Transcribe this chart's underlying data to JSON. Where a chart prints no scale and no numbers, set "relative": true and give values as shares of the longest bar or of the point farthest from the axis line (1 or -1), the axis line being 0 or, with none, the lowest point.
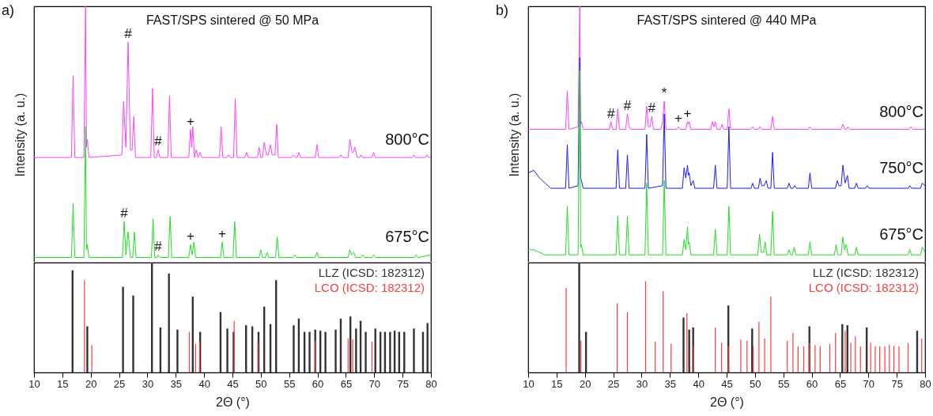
{
  "chart_data": [
    {
      "type": "line",
      "relative": true,
      "ylabel": "Intensity (a. u.)",
      "xlim": [
        10,
        80
      ],
      "xticks": [
        10,
        15,
        20,
        25,
        30,
        35,
        40,
        45,
        50,
        55,
        60,
        65,
        70,
        75,
        80
      ],
      "tick_labels": false,
      "annotations": [
        "a)",
        "FAST/SPS sintered @ 50 MPa",
        {
          "text": "#",
          "x": 26.6,
          "y": 0.86
        },
        {
          "text": "#",
          "x": 31.9,
          "y": 0.44
        },
        {
          "text": "+",
          "x": 37.6,
          "y": 0.52
        },
        {
          "text": "#",
          "x": 25.9,
          "y": 0.16
        },
        {
          "text": "#",
          "x": 31.9,
          "y": 0.03
        },
        {
          "text": "+",
          "x": 37.6,
          "y": 0.07
        },
        {
          "text": "+",
          "x": 43.2,
          "y": 0.08
        }
      ],
      "series": [
        {
          "name": "800°C",
          "color": "#ff40ff",
          "x": [
            10,
            16.6,
            16.9,
            17.2,
            18.8,
            19.1,
            19.25,
            19.4,
            19.7,
            25.5,
            25.8,
            26.2,
            26.6,
            27.0,
            27.3,
            27.6,
            27.9,
            30.6,
            30.9,
            31.2,
            31.6,
            31.9,
            32.2,
            33.6,
            33.9,
            34.2,
            37.3,
            37.6,
            37.8,
            38.0,
            38.3,
            38.6,
            38.9,
            39.3,
            39.6,
            42.7,
            43.0,
            43.3,
            44.0,
            44.3,
            44.6,
            45.2,
            45.5,
            45.8,
            47.2,
            47.5,
            47.8,
            49.4,
            49.7,
            50.0,
            50.3,
            50.6,
            51.0,
            51.3,
            51.7,
            52.0,
            52.5,
            52.8,
            53.1,
            55.4,
            55.7,
            56.1,
            56.4,
            56.7,
            57.0,
            59.6,
            59.9,
            60.2,
            63.8,
            64.1,
            64.4,
            65.4,
            65.7,
            66.1,
            66.3,
            66.6,
            67.0,
            67.4,
            67.7,
            68.0,
            69.6,
            69.9,
            70.2,
            76.7,
            77.0,
            77.3,
            79.0,
            79.3,
            79.6,
            80
          ],
          "values": [
            0.41,
            0.41,
            0.73,
            0.41,
            0.41,
            1,
            0.45,
            0.48,
            0.41,
            0.42,
            0.63,
            0.45,
            0.86,
            0.44,
            0.44,
            0.57,
            0.41,
            0.41,
            0.68,
            0.41,
            0.41,
            0.44,
            0.41,
            0.41,
            0.65,
            0.41,
            0.41,
            0.52,
            0.45,
            0.53,
            0.41,
            0.44,
            0.41,
            0.43,
            0.41,
            0.41,
            0.53,
            0.41,
            0.41,
            0.42,
            0.41,
            0.41,
            0.64,
            0.41,
            0.41,
            0.43,
            0.41,
            0.41,
            0.45,
            0.41,
            0.41,
            0.47,
            0.42,
            0.42,
            0.46,
            0.42,
            0.42,
            0.54,
            0.41,
            0.41,
            0.42,
            0.41,
            0.41,
            0.43,
            0.41,
            0.41,
            0.46,
            0.41,
            0.41,
            0.42,
            0.41,
            0.41,
            0.48,
            0.43,
            0.43,
            0.45,
            0.41,
            0.41,
            0.42,
            0.41,
            0.41,
            0.43,
            0.41,
            0.41,
            0.42,
            0.41,
            0.41,
            0.42,
            0.41,
            0.41
          ]
        },
        {
          "name": "675°C",
          "color": "#22dd22",
          "x": [
            10,
            16.6,
            16.9,
            17.2,
            18.8,
            19.1,
            19.25,
            19.4,
            19.7,
            25.6,
            25.9,
            26.2,
            26.6,
            27.0,
            27.4,
            27.7,
            28.0,
            30.7,
            31.0,
            31.3,
            31.7,
            31.9,
            32.2,
            33.7,
            34.0,
            34.3,
            37.3,
            37.6,
            37.9,
            38.2,
            38.5,
            42.9,
            43.2,
            43.5,
            45.1,
            45.4,
            45.7,
            49.7,
            50.0,
            50.3,
            50.8,
            51.1,
            51.4,
            52.6,
            52.9,
            53.2,
            55.7,
            56.0,
            56.3,
            59.6,
            59.9,
            60.2,
            65.4,
            65.7,
            66.0,
            66.4,
            66.7,
            67.7,
            68.0,
            68.3,
            69.6,
            69.9,
            70.2,
            77.1,
            77.4,
            77.7,
            80
          ],
          "values": [
            0.02,
            0.02,
            0.23,
            0.02,
            0.02,
            0.53,
            0.05,
            0.07,
            0.02,
            0.02,
            0.16,
            0.03,
            0.12,
            0.02,
            0.02,
            0.12,
            0.02,
            0.02,
            0.17,
            0.02,
            0.02,
            0.03,
            0.02,
            0.02,
            0.18,
            0.02,
            0.02,
            0.07,
            0.03,
            0.08,
            0.02,
            0.02,
            0.08,
            0.02,
            0.02,
            0.16,
            0.02,
            0.02,
            0.05,
            0.02,
            0.02,
            0.04,
            0.02,
            0.02,
            0.1,
            0.02,
            0.02,
            0.03,
            0.02,
            0.02,
            0.04,
            0.02,
            0.02,
            0.05,
            0.03,
            0.04,
            0.02,
            0.02,
            0.03,
            0.02,
            0.02,
            0.03,
            0.02,
            0.02,
            0.03,
            0.02,
            0.03
          ]
        }
      ]
    },
    {
      "type": "bar",
      "relative": true,
      "xlabel": "2Θ (°)",
      "xlim": [
        10,
        80
      ],
      "xticks": [
        10,
        15,
        20,
        25,
        30,
        35,
        40,
        45,
        50,
        55,
        60,
        65,
        70,
        75,
        80
      ],
      "tick_labels": "x",
      "series": [
        {
          "name": "LLZ (ICSD: 182312)",
          "color": "#333333",
          "x": [
            16.8,
            19.4,
            25.7,
            27.5,
            30.8,
            32.3,
            33.8,
            35.3,
            38.0,
            39.3,
            42.9,
            44.1,
            45.2,
            47.4,
            48.5,
            49.6,
            50.6,
            51.7,
            52.7,
            55.8,
            56.7,
            57.7,
            58.6,
            59.6,
            60.5,
            61.4,
            63.2,
            64.1,
            65.8,
            66.8,
            67.6,
            68.5,
            70.2,
            71.1,
            71.9,
            72.8,
            73.6,
            74.4,
            75.3,
            77.0,
            78.6,
            79.4
          ],
          "values": [
            0.93,
            0.42,
            0.78,
            0.7,
            1,
            0.41,
            0.9,
            0.39,
            0.69,
            0.37,
            0.55,
            0.4,
            0.37,
            0.43,
            0.42,
            0.37,
            0.6,
            0.44,
            0.84,
            0.43,
            0.49,
            0.37,
            0.37,
            0.39,
            0.38,
            0.37,
            0.39,
            0.49,
            0.51,
            0.4,
            0.47,
            0.37,
            0.4,
            0.37,
            0.37,
            0.37,
            0.38,
            0.37,
            0.37,
            0.4,
            0.37,
            0.45
          ]
        },
        {
          "name": "LCO (ICSD: 182312)",
          "color": "#ff3b3b",
          "x": [
            18.9,
            20.2,
            37.4,
            38.5,
            39.2,
            45.3,
            49.5,
            59.6,
            65.4,
            66.2,
            69.6
          ],
          "values": [
            0.84,
            0.25,
            0.37,
            0.26,
            0.28,
            0.47,
            0.27,
            0.29,
            0.31,
            0.3,
            0.28
          ]
        }
      ]
    },
    {
      "type": "line",
      "relative": true,
      "ylabel": "Intensity (a. u.)",
      "xlim": [
        10,
        80
      ],
      "xticks": [
        10,
        15,
        20,
        25,
        30,
        35,
        40,
        45,
        50,
        55,
        60,
        65,
        70,
        75,
        80
      ],
      "tick_labels": false,
      "annotations": [
        "b)",
        "FAST/SPS sintered @ 440 MPa",
        {
          "text": "#",
          "x": 24.6,
          "y": 0.55
        },
        {
          "text": "#",
          "x": 27.5,
          "y": 0.58
        },
        {
          "text": "#",
          "x": 31.8,
          "y": 0.57
        },
        {
          "text": "*",
          "x": 34.0,
          "y": 0.63
        },
        {
          "text": "+",
          "x": 36.5,
          "y": 0.53
        },
        {
          "text": "+",
          "x": 38.1,
          "y": 0.55
        }
      ],
      "series": [
        {
          "name": "800°C",
          "color": "#ff40ff",
          "x": [
            10,
            16.6,
            16.9,
            17.2,
            18.8,
            19.1,
            19.25,
            19.4,
            19.7,
            24.3,
            24.6,
            24.9,
            25.5,
            25.8,
            26.1,
            27.2,
            27.5,
            27.8,
            28.1,
            30.6,
            30.9,
            31.2,
            31.5,
            31.8,
            32.1,
            33.4,
            33.7,
            34.0,
            34.3,
            36.2,
            36.5,
            36.8,
            37.8,
            38.1,
            38.25,
            38.4,
            38.7,
            42.2,
            42.5,
            42.75,
            43.0,
            43.3,
            43.9,
            44.2,
            44.5,
            45.1,
            45.4,
            45.7,
            49.3,
            49.6,
            49.9,
            50.6,
            50.9,
            51.2,
            52.8,
            53.1,
            53.4,
            59.4,
            59.7,
            60.0,
            65.2,
            65.5,
            65.8,
            66.1,
            66.4,
            66.7,
            77.2,
            77.5,
            77.8,
            80
          ],
          "values": [
            0.52,
            0.52,
            0.67,
            0.52,
            0.53,
            1,
            0.54,
            0.55,
            0.52,
            0.52,
            0.55,
            0.52,
            0.52,
            0.6,
            0.52,
            0.52,
            0.58,
            0.53,
            0.52,
            0.52,
            0.61,
            0.53,
            0.53,
            0.57,
            0.52,
            0.52,
            0.55,
            0.63,
            0.52,
            0.52,
            0.53,
            0.52,
            0.52,
            0.55,
            0.54,
            0.55,
            0.52,
            0.52,
            0.55,
            0.53,
            0.55,
            0.52,
            0.52,
            0.54,
            0.52,
            0.52,
            0.6,
            0.52,
            0.52,
            0.53,
            0.52,
            0.52,
            0.53,
            0.52,
            0.52,
            0.57,
            0.52,
            0.52,
            0.53,
            0.52,
            0.52,
            0.54,
            0.52,
            0.52,
            0.53,
            0.52,
            0.52,
            0.53,
            0.52,
            0.52
          ]
        },
        {
          "name": "750°C",
          "color": "#1a1aff",
          "x": [
            10,
            11,
            12,
            13,
            14,
            16.6,
            16.9,
            17.2,
            18.8,
            19.1,
            19.25,
            19.4,
            19.7,
            25.5,
            25.8,
            26.1,
            27.2,
            27.5,
            27.8,
            30.6,
            30.9,
            31.2,
            33.7,
            34.0,
            34.3,
            37.2,
            37.5,
            37.8,
            38.1,
            38.25,
            38.4,
            38.7,
            39.1,
            39.4,
            42.7,
            43.0,
            43.3,
            45.1,
            45.4,
            45.7,
            49.3,
            49.6,
            49.9,
            50.6,
            50.9,
            51.2,
            51.6,
            52.0,
            52.3,
            52.8,
            53.1,
            53.4,
            55.7,
            56.0,
            56.3,
            56.7,
            57.0,
            57.3,
            59.4,
            59.7,
            60.0,
            64.2,
            64.5,
            64.8,
            65.2,
            65.5,
            65.9,
            66.3,
            66.6,
            67.6,
            67.9,
            68.2,
            69.5,
            69.8,
            70.1,
            77.0,
            77.3,
            77.6,
            79.2,
            79.5,
            80
          ],
          "values": [
            0.35,
            0.36,
            0.33,
            0.31,
            0.29,
            0.29,
            0.46,
            0.29,
            0.3,
            0.8,
            0.33,
            0.32,
            0.29,
            0.29,
            0.44,
            0.29,
            0.29,
            0.42,
            0.29,
            0.29,
            0.5,
            0.29,
            0.3,
            0.58,
            0.29,
            0.29,
            0.37,
            0.33,
            0.38,
            0.34,
            0.35,
            0.3,
            0.32,
            0.29,
            0.29,
            0.38,
            0.29,
            0.29,
            0.53,
            0.29,
            0.29,
            0.31,
            0.29,
            0.29,
            0.33,
            0.3,
            0.3,
            0.32,
            0.29,
            0.29,
            0.43,
            0.29,
            0.29,
            0.31,
            0.29,
            0.29,
            0.3,
            0.29,
            0.29,
            0.35,
            0.29,
            0.29,
            0.32,
            0.3,
            0.3,
            0.38,
            0.31,
            0.34,
            0.29,
            0.29,
            0.31,
            0.29,
            0.29,
            0.3,
            0.29,
            0.29,
            0.3,
            0.29,
            0.29,
            0.31,
            0.3
          ]
        },
        {
          "name": "675°C",
          "color": "#22dd22",
          "x": [
            10,
            11,
            12,
            13,
            16.6,
            16.9,
            17.2,
            18.8,
            19.1,
            19.25,
            19.4,
            19.7,
            25.5,
            25.8,
            26.1,
            27.2,
            27.5,
            27.8,
            30.6,
            30.9,
            31.2,
            33.7,
            34.0,
            34.3,
            37.2,
            37.5,
            37.8,
            38.1,
            38.25,
            38.4,
            38.7,
            42.7,
            43.0,
            43.3,
            45.1,
            45.4,
            45.7,
            50.5,
            50.8,
            51.1,
            51.5,
            51.8,
            52.1,
            52.8,
            53.1,
            53.4,
            55.7,
            56.0,
            56.3,
            56.6,
            56.9,
            57.2,
            59.4,
            59.7,
            60.0,
            64.0,
            64.3,
            64.6,
            65.2,
            65.5,
            65.8,
            66.1,
            66.4,
            67.6,
            67.9,
            68.2,
            77.0,
            77.3,
            77.6,
            79.2,
            79.5,
            80
          ],
          "values": [
            0.05,
            0.05,
            0.04,
            0.03,
            0.03,
            0.22,
            0.03,
            0.03,
            0.75,
            0.06,
            0.07,
            0.03,
            0.03,
            0.18,
            0.03,
            0.03,
            0.18,
            0.03,
            0.03,
            0.31,
            0.03,
            0.03,
            0.32,
            0.03,
            0.03,
            0.09,
            0.05,
            0.14,
            0.07,
            0.08,
            0.03,
            0.03,
            0.13,
            0.03,
            0.03,
            0.22,
            0.03,
            0.03,
            0.11,
            0.04,
            0.04,
            0.08,
            0.03,
            0.03,
            0.2,
            0.03,
            0.03,
            0.05,
            0.03,
            0.03,
            0.06,
            0.03,
            0.03,
            0.08,
            0.03,
            0.03,
            0.07,
            0.03,
            0.03,
            0.1,
            0.05,
            0.07,
            0.03,
            0.03,
            0.06,
            0.03,
            0.03,
            0.05,
            0.03,
            0.03,
            0.06,
            0.04
          ]
        }
      ]
    },
    {
      "type": "bar",
      "relative": true,
      "xlabel": "2Θ (°)",
      "xlim": [
        10,
        80
      ],
      "xticks": [
        10,
        15,
        20,
        25,
        30,
        35,
        40,
        45,
        50,
        55,
        60,
        65,
        70,
        75,
        80
      ],
      "tick_labels": "x",
      "series": [
        {
          "name": "LLZ (ICSD: 182312)",
          "color": "#333333",
          "x": [
            19.0,
            20.2,
            37.4,
            38.4,
            39.1,
            45.3,
            49.5,
            59.6,
            65.4,
            66.3,
            69.7,
            78.6
          ],
          "values": [
            1,
            0.37,
            0.5,
            0.39,
            0.41,
            0.61,
            0.4,
            0.42,
            0.44,
            0.43,
            0.41,
            0.38
          ]
        },
        {
          "name": "LCO (ICSD: 182312)",
          "color": "#ff3b3b",
          "x": [
            16.7,
            19.3,
            25.7,
            27.5,
            30.7,
            32.4,
            33.8,
            35.2,
            38.0,
            39.2,
            43.0,
            44.1,
            45.3,
            47.5,
            48.6,
            49.7,
            50.7,
            51.7,
            52.8,
            55.7,
            56.7,
            57.6,
            58.6,
            59.6,
            60.6,
            61.5,
            63.2,
            64.2,
            65.9,
            66.9,
            67.7,
            68.6,
            70.4,
            71.2,
            72.0,
            72.9,
            73.7,
            74.5,
            75.4,
            77.0,
            79.4
          ],
          "values": [
            0.77,
            0.29,
            0.63,
            0.55,
            0.83,
            0.28,
            0.74,
            0.26,
            0.54,
            0.24,
            0.41,
            0.27,
            0.24,
            0.3,
            0.29,
            0.24,
            0.46,
            0.31,
            0.69,
            0.29,
            0.36,
            0.24,
            0.24,
            0.27,
            0.25,
            0.24,
            0.26,
            0.36,
            0.38,
            0.27,
            0.33,
            0.24,
            0.27,
            0.24,
            0.24,
            0.24,
            0.25,
            0.24,
            0.24,
            0.27,
            0.31
          ]
        }
      ]
    }
  ]
}
